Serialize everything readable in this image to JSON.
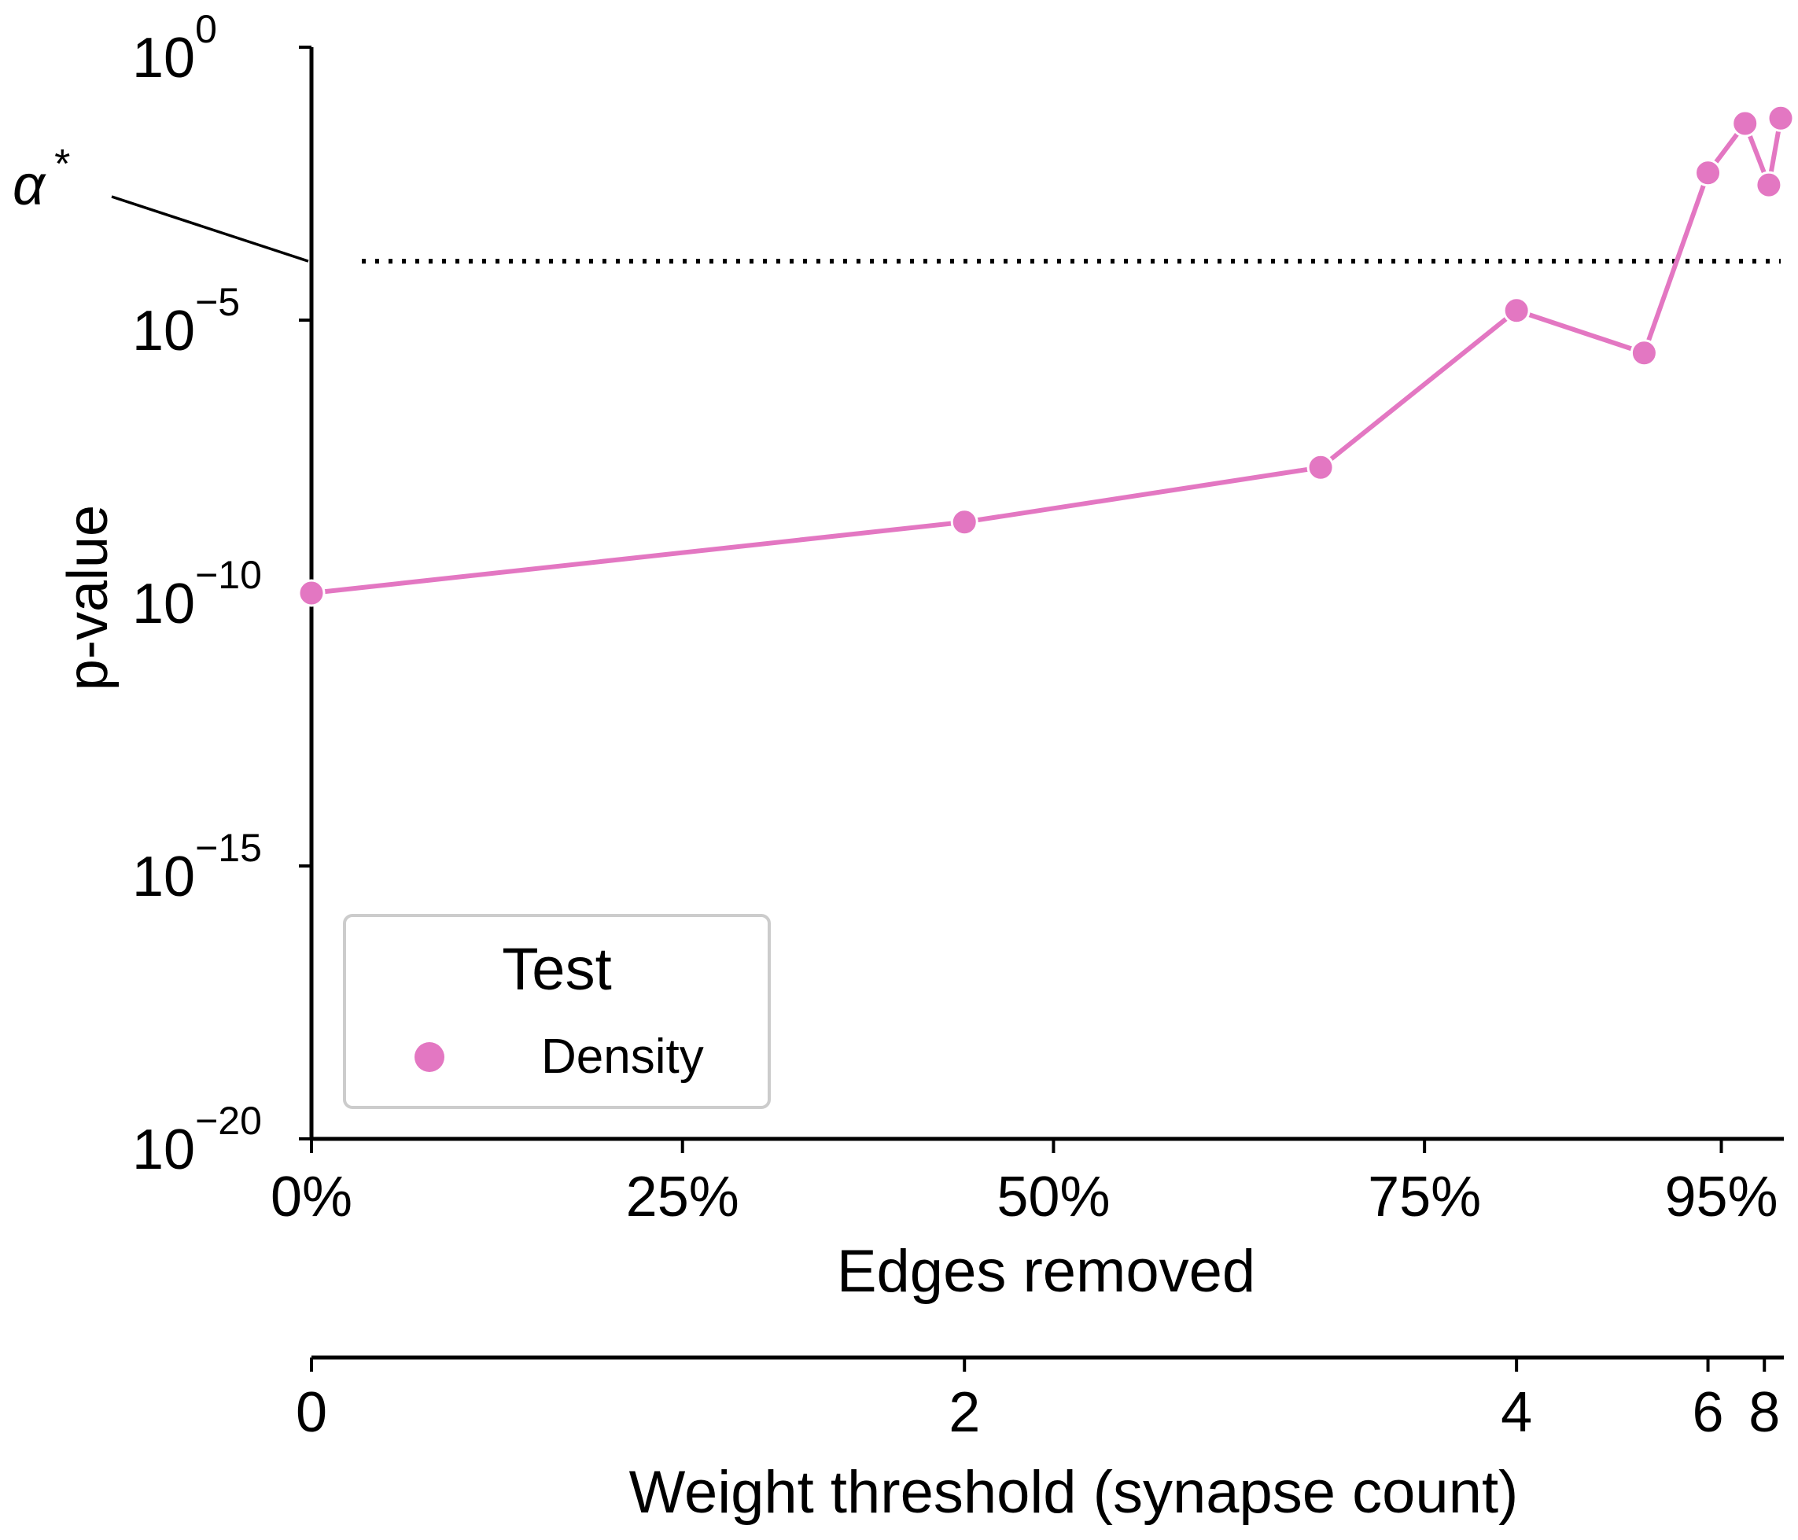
{
  "chart_data": {
    "type": "line",
    "title": "",
    "xlabel": "Edges removed",
    "ylabel": "p-value",
    "yscale": "log",
    "ylim_exponent": [
      -20,
      0
    ],
    "y_ticks": [
      {
        "base": "10",
        "exp": "0",
        "value": 1
      },
      {
        "base": "10",
        "exp": "−5",
        "value": 1e-05
      },
      {
        "base": "10",
        "exp": "−10",
        "value": 1e-10
      },
      {
        "base": "10",
        "exp": "−15",
        "value": 1e-15
      },
      {
        "base": "10",
        "exp": "−20",
        "value": 1e-20
      }
    ],
    "x_ticks": [
      {
        "label": "0%",
        "value": 0
      },
      {
        "label": "25%",
        "value": 25
      },
      {
        "label": "50%",
        "value": 50
      },
      {
        "label": "75%",
        "value": 75
      },
      {
        "label": "95%",
        "value": 95
      }
    ],
    "xlim": [
      0,
      99
    ],
    "secondary_x_axis": {
      "label": "Weight threshold (synapse count)",
      "ticks": [
        {
          "label": "0",
          "edges_removed": 0
        },
        {
          "label": "2",
          "edges_removed": 44
        },
        {
          "label": "4",
          "edges_removed": 81.2
        },
        {
          "label": "6",
          "edges_removed": 94.1
        },
        {
          "label": "8",
          "edges_removed": 97.9
        }
      ]
    },
    "threshold_line": {
      "label_base": "α",
      "label_sup": "*",
      "value": 0.00012,
      "style": "dotted"
    },
    "legend": {
      "title": "Test",
      "placement": "lower-left"
    },
    "series": [
      {
        "name": "Density",
        "color": "#e377c2",
        "x": [
          0,
          44,
          68,
          81.2,
          89.8,
          94.1,
          96.6,
          98.2,
          99
        ],
        "y": [
          1e-10,
          2e-09,
          2e-08,
          1.5e-05,
          2.5e-06,
          0.005,
          0.04,
          0.003,
          0.05
        ]
      }
    ]
  }
}
